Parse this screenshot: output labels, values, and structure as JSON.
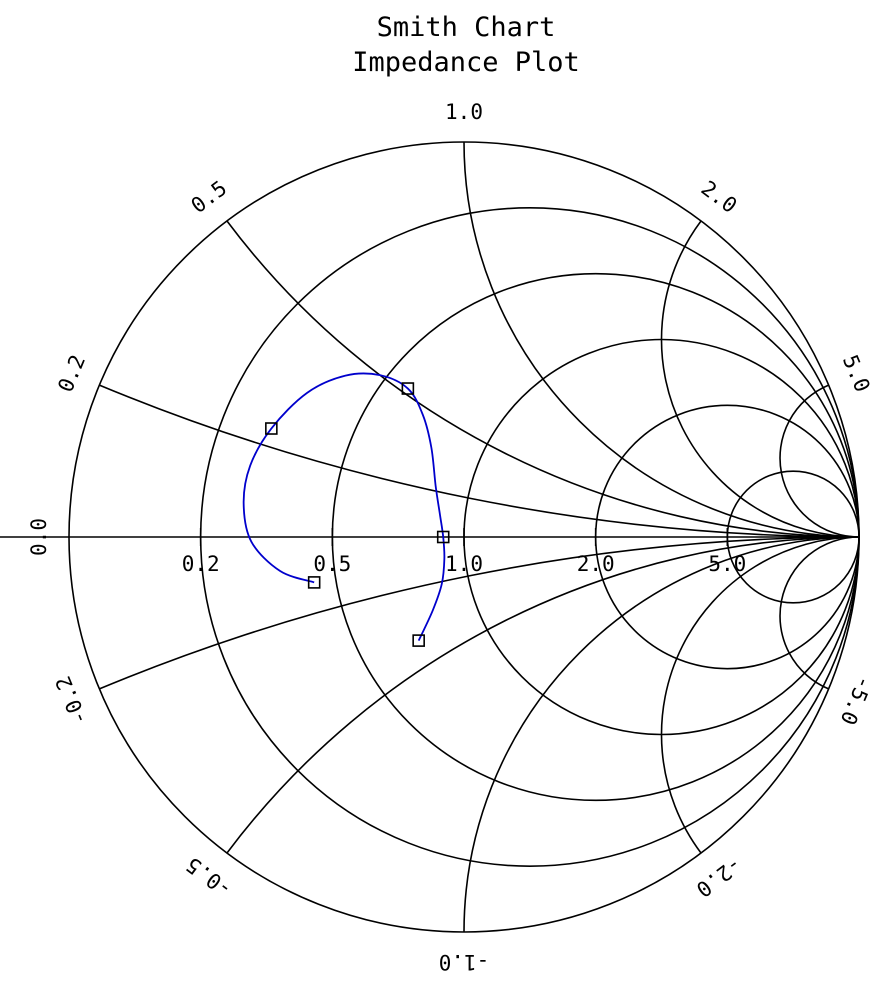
{
  "chart_data": {
    "type": "scatter",
    "chart_kind": "smith-chart",
    "title": "Smith Chart",
    "subtitle": "Impedance Plot",
    "grid": true,
    "resistance_circles": [
      0.2,
      0.5,
      1.0,
      2.0,
      5.0
    ],
    "reactance_arcs": [
      0.2,
      0.5,
      1.0,
      2.0,
      5.0,
      -0.2,
      -0.5,
      -1.0,
      -2.0,
      -5.0
    ],
    "resistance_labels": [
      "0.2",
      "0.5",
      "1.0",
      "2.0",
      "5.0"
    ],
    "reactance_labels": [
      {
        "value": 0.0,
        "text": "0.0"
      },
      {
        "value": 0.2,
        "text": "0.2"
      },
      {
        "value": 0.5,
        "text": "0.5"
      },
      {
        "value": 1.0,
        "text": "1.0"
      },
      {
        "value": 2.0,
        "text": "2.0"
      },
      {
        "value": 5.0,
        "text": "5.0"
      },
      {
        "value": -0.2,
        "text": "-0.2"
      },
      {
        "value": -0.5,
        "text": "-0.5"
      },
      {
        "value": -1.0,
        "text": "-1.0"
      },
      {
        "value": -2.0,
        "text": "-2.0"
      },
      {
        "value": -5.0,
        "text": "-5.0"
      }
    ],
    "series": [
      {
        "color": "#0000cc",
        "marker": "square",
        "points": [
          {
            "r": 0.44,
            "x": -0.12
          },
          {
            "r": 0.3,
            "x": 0.24
          },
          {
            "r": 0.58,
            "x": 0.52
          },
          {
            "r": 0.9,
            "x": 0.0
          },
          {
            "r": 0.7,
            "x": -0.4
          }
        ],
        "curve": [
          {
            "r": 0.44,
            "x": -0.12
          },
          {
            "r": 0.36,
            "x": -0.08
          },
          {
            "r": 0.3,
            "x": -0.01
          },
          {
            "r": 0.28,
            "x": 0.07
          },
          {
            "r": 0.28,
            "x": 0.15
          },
          {
            "r": 0.3,
            "x": 0.24
          },
          {
            "r": 0.34,
            "x": 0.35
          },
          {
            "r": 0.4,
            "x": 0.44
          },
          {
            "r": 0.48,
            "x": 0.5
          },
          {
            "r": 0.58,
            "x": 0.52
          },
          {
            "r": 0.68,
            "x": 0.47
          },
          {
            "r": 0.77,
            "x": 0.37
          },
          {
            "r": 0.84,
            "x": 0.22
          },
          {
            "r": 0.88,
            "x": 0.1
          },
          {
            "r": 0.9,
            "x": 0.0
          },
          {
            "r": 0.9,
            "x": -0.1
          },
          {
            "r": 0.87,
            "x": -0.21
          },
          {
            "r": 0.8,
            "x": -0.31
          },
          {
            "r": 0.7,
            "x": -0.4
          }
        ]
      }
    ]
  }
}
